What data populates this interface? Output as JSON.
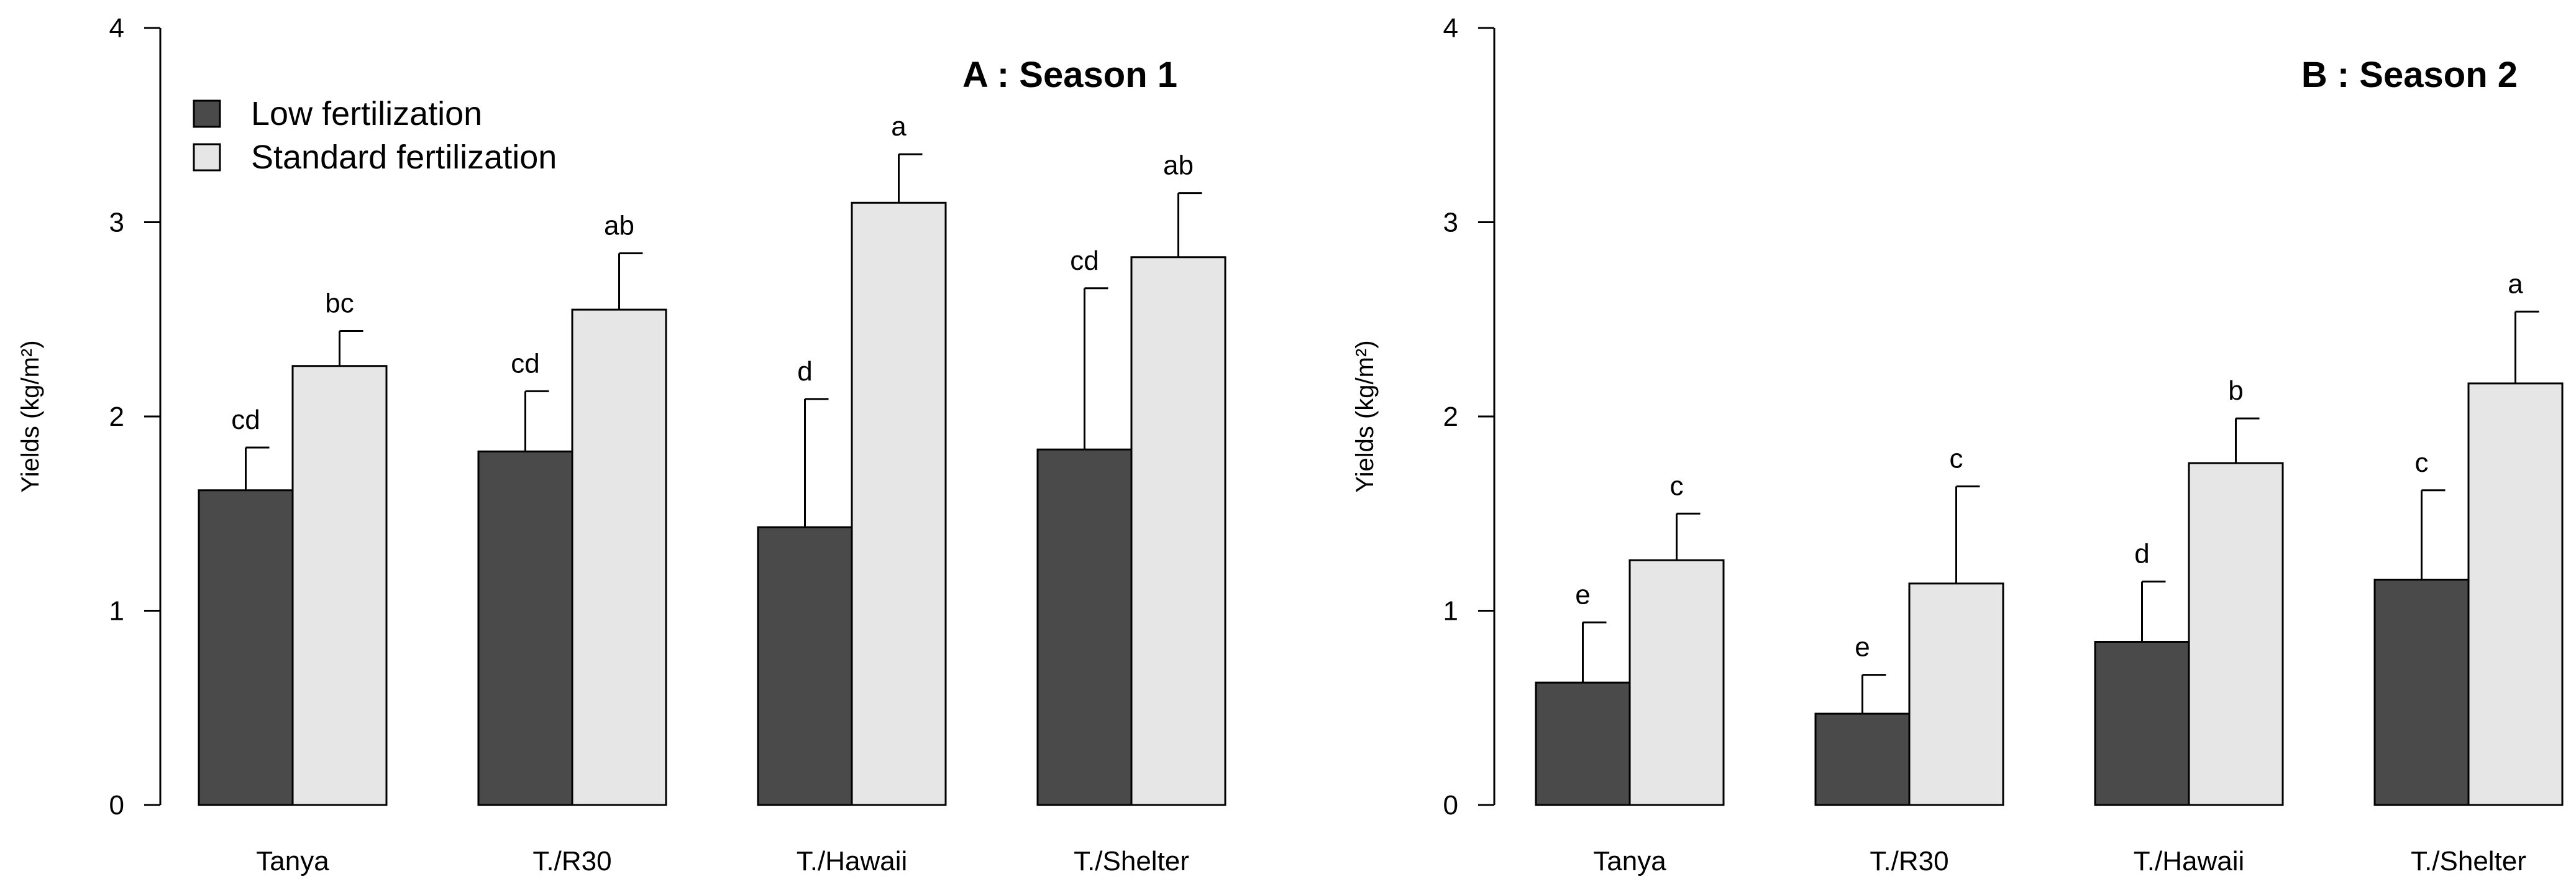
{
  "chart_data": [
    {
      "type": "bar",
      "title": "A : Season 1",
      "ylabel": "Yields (kg/m²)",
      "xlabel": "",
      "ylim": [
        0,
        4
      ],
      "yticks": [
        "0",
        "1",
        "2",
        "3",
        "4"
      ],
      "categories": [
        "Tanya",
        "T./R30",
        "T./Hawaii",
        "T./Shelter"
      ],
      "legend": {
        "position": "top-left",
        "entries": [
          "Low fertilization",
          "Standard fertilization"
        ]
      },
      "series": [
        {
          "name": "Low fertilization",
          "color": "#4a4a4a",
          "values": [
            1.62,
            1.82,
            1.43,
            1.83
          ],
          "error": [
            0.22,
            0.31,
            0.66,
            0.83
          ],
          "letters": [
            "cd",
            "cd",
            "d",
            "cd"
          ]
        },
        {
          "name": "Standard fertilization",
          "color": "#e6e6e6",
          "values": [
            2.26,
            2.55,
            3.1,
            2.82
          ],
          "error": [
            0.18,
            0.29,
            0.25,
            0.33
          ],
          "letters": [
            "bc",
            "ab",
            "a",
            "ab"
          ]
        }
      ]
    },
    {
      "type": "bar",
      "title": "B : Season 2",
      "ylabel": "Yields (kg/m²)",
      "xlabel": "",
      "ylim": [
        0,
        4
      ],
      "yticks": [
        "0",
        "1",
        "2",
        "3",
        "4"
      ],
      "categories": [
        "Tanya",
        "T./R30",
        "T./Hawaii",
        "T./Shelter"
      ],
      "series": [
        {
          "name": "Low fertilization",
          "color": "#4a4a4a",
          "values": [
            0.63,
            0.47,
            0.84,
            1.16
          ],
          "error": [
            0.31,
            0.2,
            0.31,
            0.46
          ],
          "letters": [
            "e",
            "e",
            "d",
            "c"
          ]
        },
        {
          "name": "Standard fertilization",
          "color": "#e6e6e6",
          "values": [
            1.26,
            1.14,
            1.76,
            2.17
          ],
          "error": [
            0.24,
            0.5,
            0.23,
            0.37
          ],
          "letters": [
            "c",
            "c",
            "b",
            "a"
          ]
        }
      ]
    }
  ]
}
